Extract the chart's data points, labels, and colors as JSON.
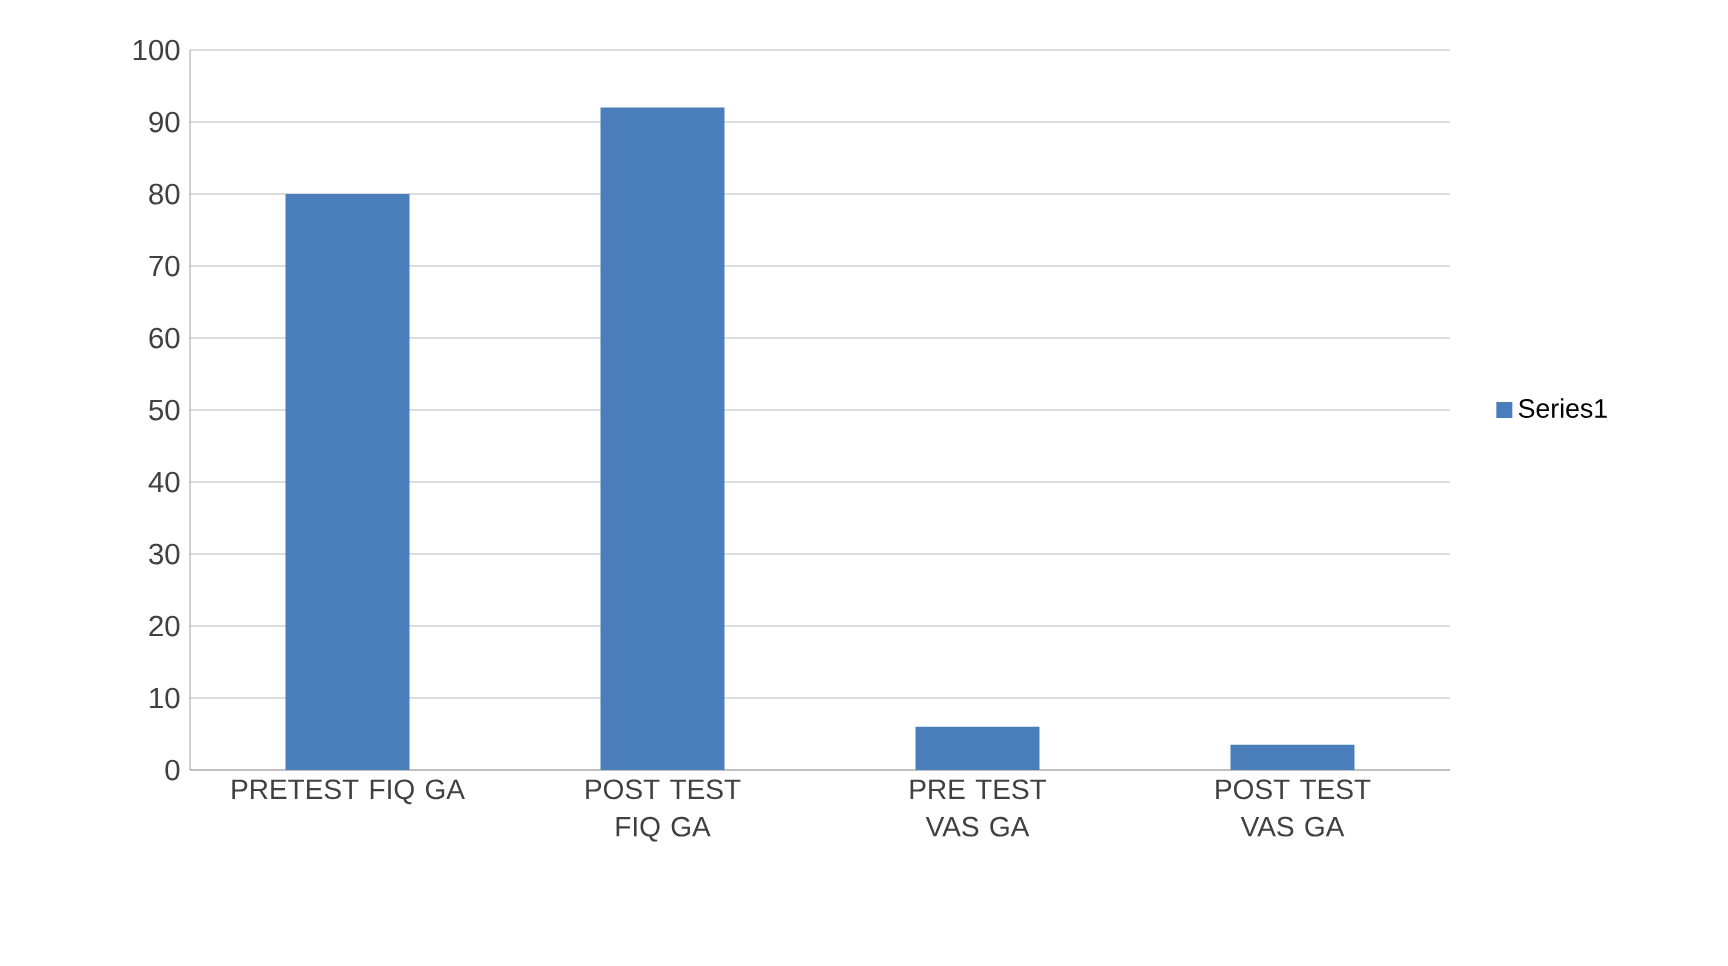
{
  "chart_data": {
    "type": "bar",
    "categories": [
      "PRETEST FIQ GA",
      "POST TEST FIQ GA",
      "PRE TEST VAS GA",
      "POST TEST VAS GA"
    ],
    "series": [
      {
        "name": "Series1",
        "color": "#4a7ebb",
        "values": [
          80,
          92,
          6,
          3.5
        ]
      }
    ],
    "ylim": [
      0,
      100
    ],
    "yticks": [
      0,
      10,
      20,
      30,
      40,
      50,
      60,
      70,
      80,
      90,
      100
    ],
    "grid": "y",
    "legend": "right"
  }
}
